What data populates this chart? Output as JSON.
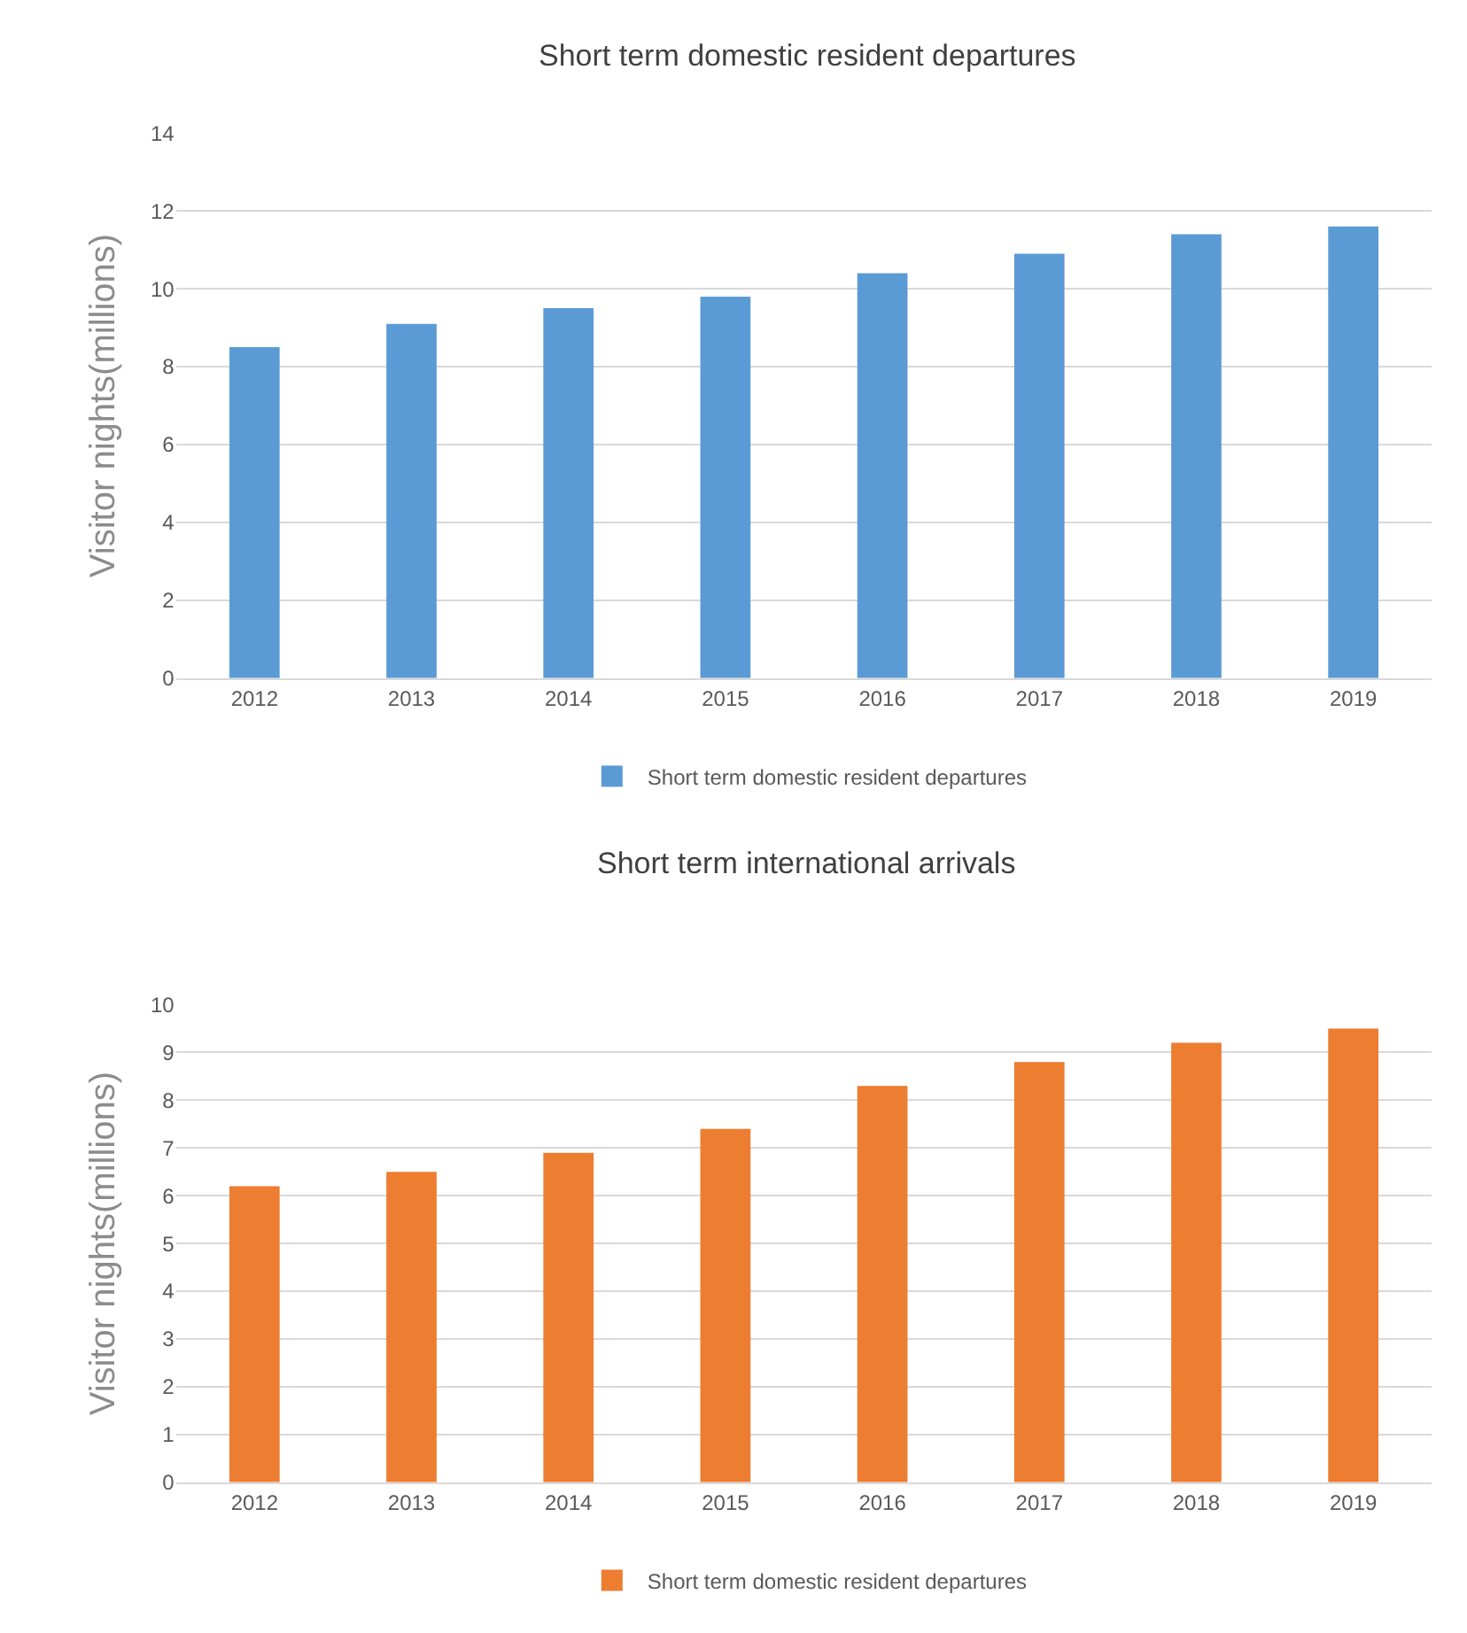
{
  "chart_data": [
    {
      "type": "bar",
      "title": "Short term domestic resident departures",
      "ylabel": "Visitor nights(millions)",
      "categories": [
        "2012",
        "2013",
        "2014",
        "2015",
        "2016",
        "2017",
        "2018",
        "2019"
      ],
      "series": [
        {
          "name": "Short term domestic resident departures",
          "color": "#5b9bd5",
          "values": [
            8.5,
            9.1,
            9.5,
            9.8,
            10.4,
            10.9,
            11.4,
            11.6
          ]
        }
      ],
      "ylim": [
        0,
        14
      ],
      "yticks": [
        0,
        2,
        4,
        6,
        8,
        10,
        12,
        14
      ],
      "grid": "y",
      "legend": "bottom"
    },
    {
      "type": "bar",
      "title": "Short term international arrivals",
      "ylabel": "Visitor nights(millions)",
      "categories": [
        "2012",
        "2013",
        "2014",
        "2015",
        "2016",
        "2017",
        "2018",
        "2019"
      ],
      "series": [
        {
          "name": "Short term domestic resident departures",
          "color": "#ed7d31",
          "values": [
            6.2,
            6.5,
            6.9,
            7.4,
            8.3,
            8.8,
            9.2,
            9.5
          ]
        }
      ],
      "ylim": [
        0,
        10
      ],
      "yticks": [
        0,
        1,
        2,
        3,
        4,
        5,
        6,
        7,
        8,
        9,
        10
      ],
      "grid": "y",
      "legend": "bottom"
    }
  ]
}
